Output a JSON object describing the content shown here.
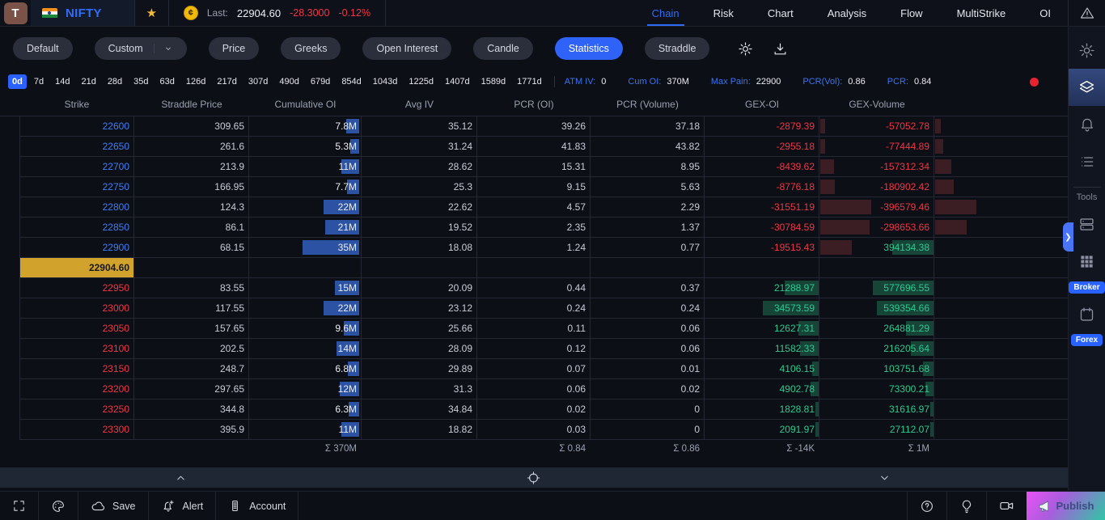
{
  "topbar": {
    "logo": "T",
    "symbol": "NIFTY",
    "last_label": "Last:",
    "last_price": "22904.60",
    "change": "-28.3000",
    "change_pct": "-0.12%",
    "nav_tabs": [
      {
        "label": "Chain",
        "active": true
      },
      {
        "label": "Risk",
        "active": false
      },
      {
        "label": "Chart",
        "active": false
      },
      {
        "label": "Analysis",
        "active": false
      },
      {
        "label": "Flow",
        "active": false
      },
      {
        "label": "MultiStrike",
        "active": false
      },
      {
        "label": "OI",
        "active": false
      }
    ]
  },
  "toolbar": {
    "preset_default": "Default",
    "preset_custom": "Custom",
    "modes": [
      "Price",
      "Greeks",
      "Open Interest",
      "Candle",
      "Statistics",
      "Straddle"
    ],
    "active_mode": "Statistics"
  },
  "expiry_row": {
    "tabs": [
      "0d",
      "7d",
      "14d",
      "21d",
      "28d",
      "35d",
      "63d",
      "126d",
      "217d",
      "307d",
      "490d",
      "679d",
      "854d",
      "1043d",
      "1225d",
      "1407d",
      "1589d",
      "1771d"
    ],
    "active_tab": "0d",
    "stats": [
      {
        "label": "ATM IV:",
        "value": "0"
      },
      {
        "label": "Cum OI:",
        "value": "370M"
      },
      {
        "label": "Max Pain:",
        "value": "22900"
      },
      {
        "label": "PCR(Vol):",
        "value": "0.86"
      },
      {
        "label": "PCR:",
        "value": "0.84"
      }
    ]
  },
  "table": {
    "columns": [
      "Strike",
      "Straddle Price",
      "Cumulative OI",
      "Avg IV",
      "PCR (OI)",
      "PCR (Volume)",
      "GEX-OI",
      "GEX-Volume"
    ],
    "rows": [
      {
        "strike": "22600",
        "side": "itm",
        "straddle": "309.65",
        "cum_oi": "7.8M",
        "cum_oi_m": 7.8,
        "avg_iv": "35.12",
        "pcr_oi": "39.26",
        "pcr_vol": "37.18",
        "gex_oi": -2879.39,
        "gex_vol": -57052.78
      },
      {
        "strike": "22650",
        "side": "itm",
        "straddle": "261.6",
        "cum_oi": "5.3M",
        "cum_oi_m": 5.3,
        "avg_iv": "31.24",
        "pcr_oi": "41.83",
        "pcr_vol": "43.82",
        "gex_oi": -2955.18,
        "gex_vol": -77444.89
      },
      {
        "strike": "22700",
        "side": "itm",
        "straddle": "213.9",
        "cum_oi": "11M",
        "cum_oi_m": 11,
        "avg_iv": "28.62",
        "pcr_oi": "15.31",
        "pcr_vol": "8.95",
        "gex_oi": -8439.62,
        "gex_vol": -157312.34
      },
      {
        "strike": "22750",
        "side": "itm",
        "straddle": "166.95",
        "cum_oi": "7.7M",
        "cum_oi_m": 7.7,
        "avg_iv": "25.3",
        "pcr_oi": "9.15",
        "pcr_vol": "5.63",
        "gex_oi": -8776.18,
        "gex_vol": -180902.42
      },
      {
        "strike": "22800",
        "side": "itm",
        "straddle": "124.3",
        "cum_oi": "22M",
        "cum_oi_m": 22,
        "avg_iv": "22.62",
        "pcr_oi": "4.57",
        "pcr_vol": "2.29",
        "gex_oi": -31551.19,
        "gex_vol": -396579.46
      },
      {
        "strike": "22850",
        "side": "itm",
        "straddle": "86.1",
        "cum_oi": "21M",
        "cum_oi_m": 21,
        "avg_iv": "19.52",
        "pcr_oi": "2.35",
        "pcr_vol": "1.37",
        "gex_oi": -30784.59,
        "gex_vol": -298653.66
      },
      {
        "strike": "22900",
        "side": "itm",
        "straddle": "68.15",
        "cum_oi": "35M",
        "cum_oi_m": 35,
        "avg_iv": "18.08",
        "pcr_oi": "1.24",
        "pcr_vol": "0.77",
        "gex_oi": -19515.43,
        "gex_vol": 394134.38
      },
      {
        "spot": true,
        "label": "22904.60"
      },
      {
        "strike": "22950",
        "side": "otm",
        "straddle": "83.55",
        "cum_oi": "15M",
        "cum_oi_m": 15,
        "avg_iv": "20.09",
        "pcr_oi": "0.44",
        "pcr_vol": "0.37",
        "gex_oi": 21288.97,
        "gex_vol": 577696.55
      },
      {
        "strike": "23000",
        "side": "otm",
        "straddle": "117.55",
        "cum_oi": "22M",
        "cum_oi_m": 22,
        "avg_iv": "23.12",
        "pcr_oi": "0.24",
        "pcr_vol": "0.24",
        "gex_oi": 34573.59,
        "gex_vol": 539354.66
      },
      {
        "strike": "23050",
        "side": "otm",
        "straddle": "157.65",
        "cum_oi": "9.6M",
        "cum_oi_m": 9.6,
        "avg_iv": "25.66",
        "pcr_oi": "0.11",
        "pcr_vol": "0.06",
        "gex_oi": 12627.31,
        "gex_vol": 264881.29
      },
      {
        "strike": "23100",
        "side": "otm",
        "straddle": "202.5",
        "cum_oi": "14M",
        "cum_oi_m": 14,
        "avg_iv": "28.09",
        "pcr_oi": "0.12",
        "pcr_vol": "0.06",
        "gex_oi": 11582.33,
        "gex_vol": 216205.64
      },
      {
        "strike": "23150",
        "side": "otm",
        "straddle": "248.7",
        "cum_oi": "6.8M",
        "cum_oi_m": 6.8,
        "avg_iv": "29.89",
        "pcr_oi": "0.07",
        "pcr_vol": "0.01",
        "gex_oi": 4106.15,
        "gex_vol": 103751.68
      },
      {
        "strike": "23200",
        "side": "otm",
        "straddle": "297.65",
        "cum_oi": "12M",
        "cum_oi_m": 12,
        "avg_iv": "31.3",
        "pcr_oi": "0.06",
        "pcr_vol": "0.02",
        "gex_oi": 4902.78,
        "gex_vol": 73300.21
      },
      {
        "strike": "23250",
        "side": "otm",
        "straddle": "344.8",
        "cum_oi": "6.3M",
        "cum_oi_m": 6.3,
        "avg_iv": "34.84",
        "pcr_oi": "0.02",
        "pcr_vol": "0",
        "gex_oi": 1828.81,
        "gex_vol": 31616.97
      },
      {
        "strike": "23300",
        "side": "otm",
        "straddle": "395.9",
        "cum_oi": "11M",
        "cum_oi_m": 11,
        "avg_iv": "18.82",
        "pcr_oi": "0.03",
        "pcr_vol": "0",
        "gex_oi": 2091.97,
        "gex_vol": 27112.07
      }
    ],
    "totals": {
      "cum_oi": "Σ 370M",
      "pcr_oi": "Σ 0.84",
      "pcr_vol": "Σ 0.86",
      "gex_oi": "Σ -14K",
      "gex_vol": "Σ 1M"
    }
  },
  "bottombar": {
    "save_label": "Save",
    "alert_label": "Alert",
    "account_label": "Account",
    "publish_label": "Publish"
  },
  "sidebar": {
    "tools_label": "Tools",
    "broker_badge": "Broker",
    "forex_badge": "Forex"
  },
  "colors": {
    "accent_blue": "#2962ff",
    "strike_itm_blue": "#3f7ef7",
    "negative_red": "#f23645",
    "positive_green": "#2bcb90",
    "spot_row_gold": "#d2a32c",
    "oi_bar_blue": "#2b52a3",
    "neg_bar": "#3a1e24",
    "pos_bar": "#164437"
  }
}
